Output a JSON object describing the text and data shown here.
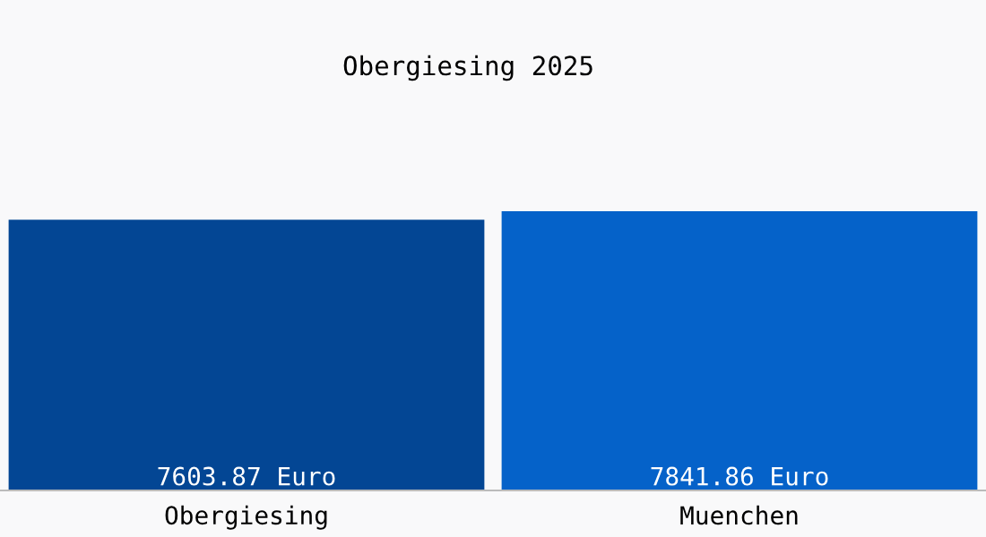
{
  "chart_data": {
    "type": "bar",
    "title": "Obergiesing 2025",
    "categories": [
      "Obergiesing",
      "Muenchen"
    ],
    "values": [
      7603.87,
      7841.86
    ],
    "colors": [
      "#034694",
      "#0562c9"
    ],
    "value_labels": [
      "7603.87 Euro",
      "7841.86 Euro"
    ],
    "grid": false,
    "legend": false
  }
}
